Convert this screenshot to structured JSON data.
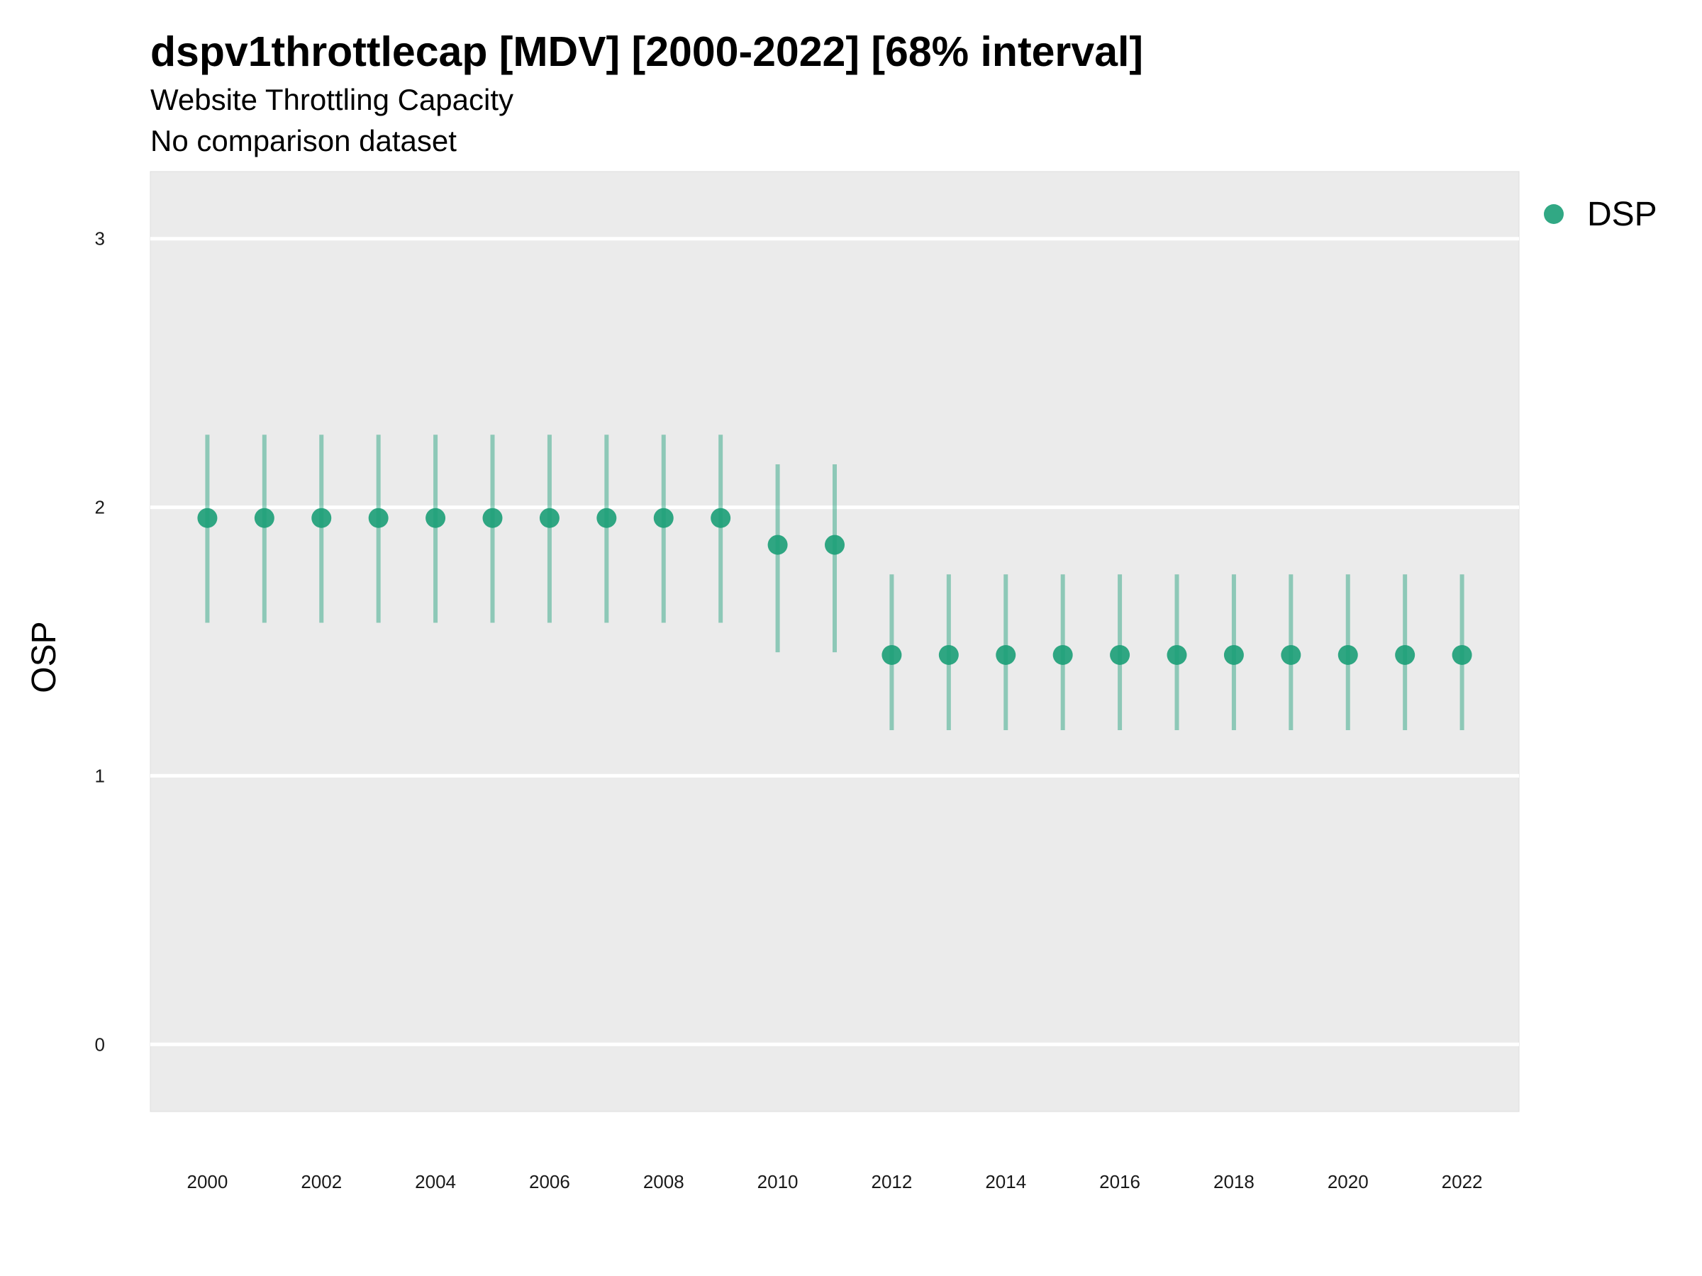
{
  "chart_data": {
    "type": "scatter",
    "title": "dspv1throttlecap [MDV] [2000-2022] [68% interval]",
    "subtitle": "Website Throttling Capacity",
    "caption": "No comparison dataset",
    "xlabel": "",
    "ylabel": "OSP",
    "xlim": [
      1999,
      2023
    ],
    "ylim": [
      -0.25,
      3.25
    ],
    "x_ticks": [
      2000,
      2002,
      2004,
      2006,
      2008,
      2010,
      2012,
      2014,
      2016,
      2018,
      2020,
      2022
    ],
    "y_ticks": [
      0,
      1,
      2,
      3
    ],
    "grid": true,
    "legend_position": "right",
    "series": [
      {
        "name": "DSP",
        "color": "#1b9e77",
        "x": [
          2000,
          2001,
          2002,
          2003,
          2004,
          2005,
          2006,
          2007,
          2008,
          2009,
          2010,
          2011,
          2012,
          2013,
          2014,
          2015,
          2016,
          2017,
          2018,
          2019,
          2020,
          2021,
          2022
        ],
        "y": [
          1.96,
          1.96,
          1.96,
          1.96,
          1.96,
          1.96,
          1.96,
          1.96,
          1.96,
          1.96,
          1.86,
          1.86,
          1.45,
          1.45,
          1.45,
          1.45,
          1.45,
          1.45,
          1.45,
          1.45,
          1.45,
          1.45,
          1.45
        ],
        "lower": [
          1.57,
          1.57,
          1.57,
          1.57,
          1.57,
          1.57,
          1.57,
          1.57,
          1.57,
          1.57,
          1.46,
          1.46,
          1.17,
          1.17,
          1.17,
          1.17,
          1.17,
          1.17,
          1.17,
          1.17,
          1.17,
          1.17,
          1.17
        ],
        "upper": [
          2.27,
          2.27,
          2.27,
          2.27,
          2.27,
          2.27,
          2.27,
          2.27,
          2.27,
          2.27,
          2.16,
          2.16,
          1.75,
          1.75,
          1.75,
          1.75,
          1.75,
          1.75,
          1.75,
          1.75,
          1.75,
          1.75,
          1.75
        ]
      }
    ]
  }
}
